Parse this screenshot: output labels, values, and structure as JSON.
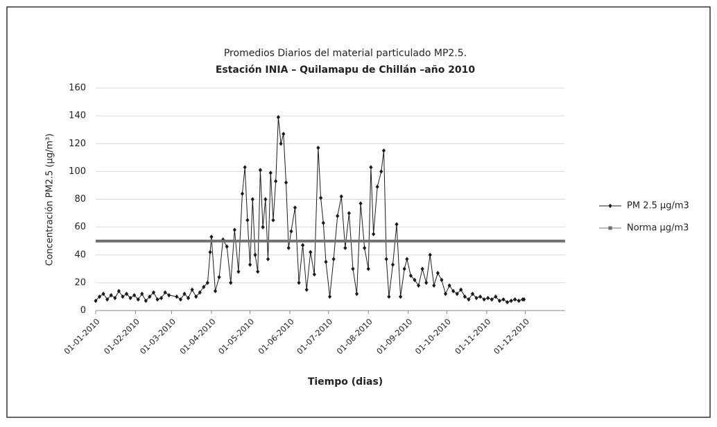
{
  "chart_data": {
    "type": "line",
    "title": "Promedios  Diarios del material particulado MP2.5.",
    "subtitle": "Estación INIA – Quilamapu de Chillán –año 2010",
    "x_label": "Tiempo (dias)",
    "y_label": "Concentración PM2.5 (µg/m³)",
    "xlim": [
      "2010-01-01",
      "2011-01-01"
    ],
    "xticks": [
      {
        "value": "2010-01-01",
        "label": "01-01-2010"
      },
      {
        "value": "2010-02-01",
        "label": "01-02-2010"
      },
      {
        "value": "2010-03-01",
        "label": "01-03-2010"
      },
      {
        "value": "2010-04-01",
        "label": "01-04-2010"
      },
      {
        "value": "2010-05-01",
        "label": "01-05-2010"
      },
      {
        "value": "2010-06-01",
        "label": "01-06-2010"
      },
      {
        "value": "2010-07-01",
        "label": "01-07-2010"
      },
      {
        "value": "2010-08-01",
        "label": "01-08-2010"
      },
      {
        "value": "2010-09-01",
        "label": "01-09-2010"
      },
      {
        "value": "2010-10-01",
        "label": "01-10-2010"
      },
      {
        "value": "2010-11-01",
        "label": "01-11-2010"
      },
      {
        "value": "2010-12-01",
        "label": "01-12-2010"
      }
    ],
    "ylim": [
      0,
      160
    ],
    "yticks": [
      0,
      20,
      40,
      60,
      80,
      100,
      120,
      140,
      160
    ],
    "grid": true,
    "legend": "right",
    "series": [
      {
        "name": "PM 2.5 µg/m3",
        "color": "#1a1a1a",
        "marker": "diamond",
        "x": [
          "2010-01-01",
          "2010-01-04",
          "2010-01-07",
          "2010-01-10",
          "2010-01-13",
          "2010-01-16",
          "2010-01-19",
          "2010-01-22",
          "2010-01-25",
          "2010-01-28",
          "2010-01-31",
          "2010-02-03",
          "2010-02-06",
          "2010-02-09",
          "2010-02-12",
          "2010-02-15",
          "2010-02-18",
          "2010-02-21",
          "2010-02-24",
          "2010-02-27",
          "2010-03-05",
          "2010-03-08",
          "2010-03-11",
          "2010-03-14",
          "2010-03-17",
          "2010-03-20",
          "2010-03-23",
          "2010-03-26",
          "2010-03-29",
          "2010-03-31",
          "2010-04-01",
          "2010-04-04",
          "2010-04-07",
          "2010-04-10",
          "2010-04-13",
          "2010-04-16",
          "2010-04-19",
          "2010-04-22",
          "2010-04-25",
          "2010-04-27",
          "2010-04-29",
          "2010-05-01",
          "2010-05-03",
          "2010-05-05",
          "2010-05-07",
          "2010-05-09",
          "2010-05-11",
          "2010-05-13",
          "2010-05-15",
          "2010-05-17",
          "2010-05-19",
          "2010-05-21",
          "2010-05-23",
          "2010-05-25",
          "2010-05-27",
          "2010-05-29",
          "2010-05-31",
          "2010-06-02",
          "2010-06-05",
          "2010-06-08",
          "2010-06-11",
          "2010-06-14",
          "2010-06-17",
          "2010-06-20",
          "2010-06-23",
          "2010-06-25",
          "2010-06-27",
          "2010-06-29",
          "2010-07-02",
          "2010-07-05",
          "2010-07-08",
          "2010-07-11",
          "2010-07-14",
          "2010-07-17",
          "2010-07-20",
          "2010-07-23",
          "2010-07-26",
          "2010-07-29",
          "2010-08-01",
          "2010-08-03",
          "2010-08-05",
          "2010-08-08",
          "2010-08-11",
          "2010-08-13",
          "2010-08-15",
          "2010-08-17",
          "2010-08-20",
          "2010-08-23",
          "2010-08-26",
          "2010-08-29",
          "2010-08-31",
          "2010-09-03",
          "2010-09-06",
          "2010-09-09",
          "2010-09-12",
          "2010-09-15",
          "2010-09-18",
          "2010-09-21",
          "2010-09-24",
          "2010-09-27",
          "2010-09-30",
          "2010-10-03",
          "2010-10-06",
          "2010-10-09",
          "2010-10-12",
          "2010-10-15",
          "2010-10-18",
          "2010-10-21",
          "2010-10-24",
          "2010-10-27",
          "2010-10-30",
          "2010-11-02",
          "2010-11-05",
          "2010-11-08",
          "2010-11-11",
          "2010-11-14",
          "2010-11-17",
          "2010-11-20",
          "2010-11-23",
          "2010-11-26",
          "2010-11-29",
          "2010-11-30"
        ],
        "values": [
          7,
          10,
          12,
          8,
          11,
          9,
          14,
          10,
          12,
          9,
          11,
          8,
          12,
          7,
          10,
          13,
          8,
          9,
          13,
          11,
          10,
          8,
          12,
          9,
          15,
          10,
          13,
          17,
          20,
          42,
          53,
          14,
          24,
          51,
          46,
          20,
          58,
          28,
          84,
          103,
          65,
          33,
          80,
          40,
          28,
          101,
          60,
          80,
          37,
          99,
          65,
          93,
          139,
          120,
          127,
          92,
          45,
          57,
          74,
          20,
          47,
          15,
          42,
          26,
          117,
          81,
          63,
          35,
          10,
          37,
          68,
          82,
          45,
          70,
          30,
          12,
          77,
          45,
          30,
          103,
          55,
          89,
          100,
          115,
          37,
          10,
          33,
          62,
          10,
          30,
          37,
          25,
          22,
          18,
          30,
          20,
          40,
          18,
          27,
          22,
          12,
          18,
          14,
          12,
          15,
          10,
          8,
          12,
          9,
          10,
          8,
          9,
          8,
          10,
          7,
          8,
          6,
          7,
          8,
          7,
          8,
          8
        ]
      },
      {
        "name": "Norma µg/m3",
        "color": "#707070",
        "marker": "square",
        "x": [
          "2010-01-01",
          "2011-01-01"
        ],
        "values": [
          50,
          50
        ]
      }
    ]
  }
}
